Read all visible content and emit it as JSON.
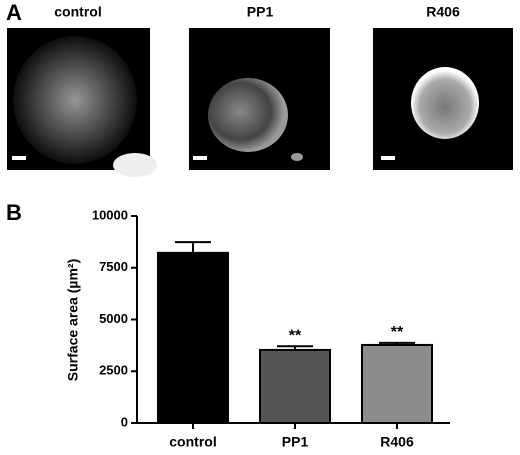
{
  "panel_labels": [
    "A",
    "B"
  ],
  "images": [
    {
      "title": "control"
    },
    {
      "title": "PP1"
    },
    {
      "title": "R406"
    }
  ],
  "chart_data": {
    "type": "bar",
    "categories": [
      "control",
      "PP1",
      "R406"
    ],
    "values": [
      8220,
      3530,
      3770
    ],
    "errors": [
      520,
      180,
      100
    ],
    "colors": [
      "#000000",
      "#555555",
      "#8c8c8c"
    ],
    "significance": [
      null,
      "**",
      "**"
    ],
    "y_label": "Surface area (µm²)",
    "ylim": [
      0,
      10000
    ],
    "yticks": [
      0,
      2500,
      5000,
      7500,
      10000
    ]
  }
}
